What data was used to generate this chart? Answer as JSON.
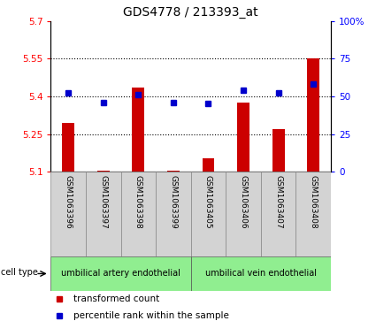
{
  "title": "GDS4778 / 213393_at",
  "samples": [
    "GSM1063396",
    "GSM1063397",
    "GSM1063398",
    "GSM1063399",
    "GSM1063405",
    "GSM1063406",
    "GSM1063407",
    "GSM1063408"
  ],
  "red_values": [
    5.295,
    5.105,
    5.435,
    5.105,
    5.155,
    5.375,
    5.27,
    5.55
  ],
  "blue_values": [
    52,
    46,
    51,
    46,
    45,
    54,
    52,
    58
  ],
  "ylim_left": [
    5.1,
    5.7
  ],
  "ylim_right": [
    0,
    100
  ],
  "yticks_left": [
    5.1,
    5.25,
    5.4,
    5.55,
    5.7
  ],
  "yticks_right": [
    0,
    25,
    50,
    75,
    100
  ],
  "ytick_labels_left": [
    "5.1",
    "5.25",
    "5.4",
    "5.55",
    "5.7"
  ],
  "ytick_labels_right": [
    "0",
    "25",
    "50",
    "75",
    "100%"
  ],
  "hlines": [
    5.25,
    5.4,
    5.55
  ],
  "cell_type_labels": [
    "umbilical artery endothelial",
    "umbilical vein endothelial"
  ],
  "cell_type_split": 4,
  "bar_color": "#CC0000",
  "dot_color": "#0000CC",
  "bar_width": 0.35,
  "bar_bottom": 5.1,
  "sample_box_color": "#D3D3D3",
  "ct_color": "#90EE90",
  "label_red": "transformed count",
  "label_blue": "percentile rank within the sample",
  "legend_red_color": "#CC0000",
  "legend_blue_color": "#0000CC"
}
